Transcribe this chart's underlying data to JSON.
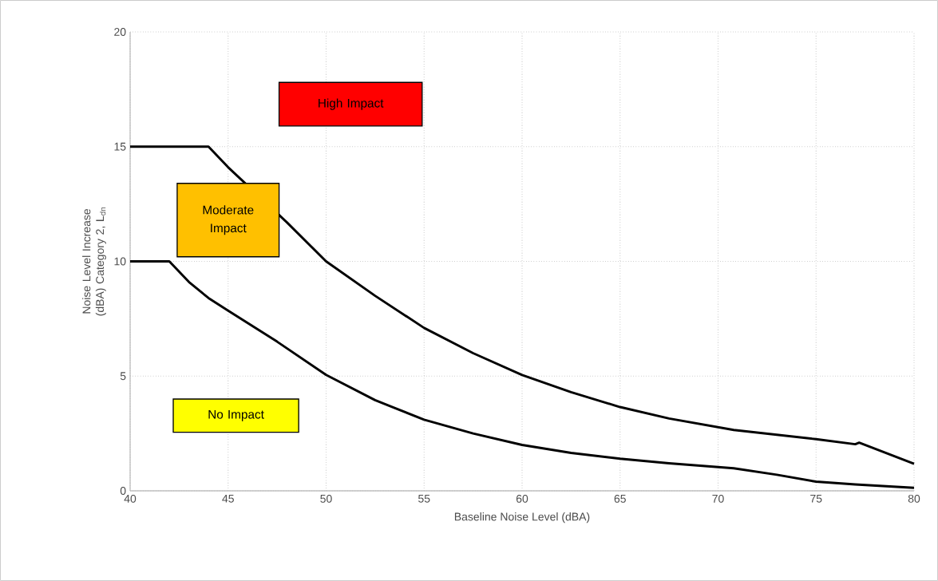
{
  "chart_data": {
    "type": "line",
    "xlabel": "Baseline Noise Level (dBA)",
    "ylabel": "Noise Level Increase (dBA) Category 2, L$_{dn}$",
    "xlim": [
      40,
      80
    ],
    "xticks": [
      40,
      45,
      50,
      55,
      60,
      65,
      70,
      75,
      80
    ],
    "ylim": [
      0,
      20
    ],
    "yticks": [
      0,
      5,
      10,
      15,
      20
    ],
    "grid": true,
    "series": [
      {
        "color": "#000000",
        "x": [
          40,
          44,
          45,
          48,
          50,
          52.5,
          55,
          57.5,
          60,
          62.5,
          65,
          67.5,
          70.8,
          75,
          77,
          77.2,
          80
        ],
        "values": [
          15,
          15,
          14.1,
          11.7,
          10,
          8.5,
          7.1,
          6,
          5.05,
          4.3,
          3.65,
          3.15,
          2.65,
          2.25,
          2.03,
          2.1,
          1.18
        ]
      },
      {
        "color": "#000000",
        "x": [
          40,
          42,
          43,
          44,
          45,
          47.5,
          50,
          52.5,
          55,
          57.5,
          60,
          62.5,
          65,
          67.5,
          70.8,
          73,
          75,
          77,
          80
        ],
        "values": [
          10,
          10,
          9.1,
          8.4,
          7.85,
          6.5,
          5.05,
          3.95,
          3.1,
          2.5,
          2.0,
          1.65,
          1.4,
          1.2,
          0.98,
          0.7,
          0.4,
          0.28,
          0.13
        ]
      }
    ],
    "annotations": [
      "High Impact",
      "Moderate Impact",
      "No Impact"
    ]
  }
}
